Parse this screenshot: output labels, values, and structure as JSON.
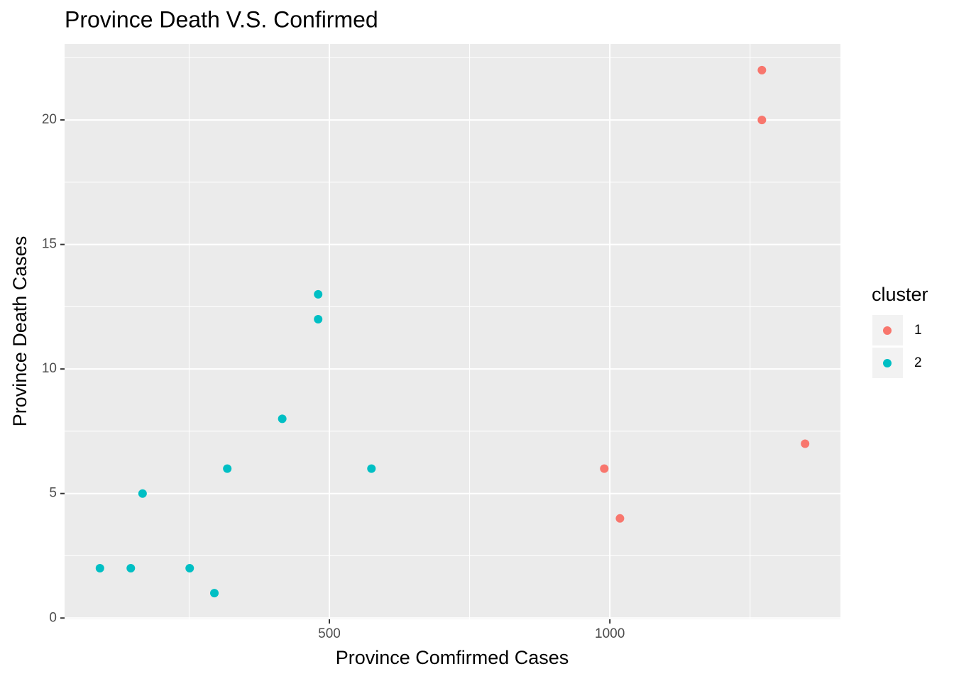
{
  "chart_data": {
    "type": "scatter",
    "title": "Province Death V.S. Confirmed",
    "x_label": "Province Comfirmed Cases",
    "y_label": "Province Death Cases",
    "legend_title": "cluster",
    "legend": "right",
    "grid": true,
    "xlim": [
      28,
      1411
    ],
    "ylim": [
      -0.05,
      23.05
    ],
    "xticks": [
      500,
      1000
    ],
    "yticks": [
      0,
      5,
      10,
      15,
      20
    ],
    "series": [
      {
        "name": "1",
        "color": "#F8766D",
        "x": [
          990,
          1018,
          1271,
          1271,
          1348
        ],
        "values": [
          6,
          4,
          22,
          20,
          7
        ]
      },
      {
        "name": "2",
        "color": "#00BFC4",
        "x": [
          91,
          146,
          167,
          251,
          295,
          318,
          416,
          480,
          480,
          575
        ],
        "values": [
          2,
          2,
          5,
          2,
          1,
          6,
          8,
          13,
          12,
          6
        ]
      }
    ]
  }
}
